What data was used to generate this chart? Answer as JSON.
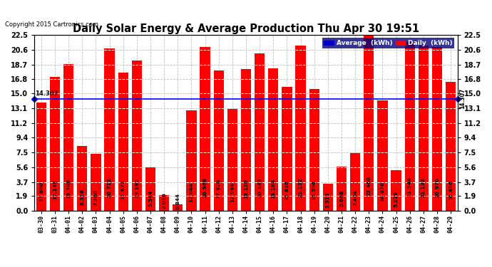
{
  "title": "Daily Solar Energy & Average Production Thu Apr 30 19:51",
  "copyright": "Copyright 2015 Cartronics.com",
  "average_value": 14.307,
  "bar_color": "#FF0000",
  "average_line_color": "#0000FF",
  "background_color": "#FFFFFF",
  "plot_bg_color": "#FFFFFF",
  "grid_color": "#C0C0C0",
  "categories": [
    "03-30",
    "03-31",
    "04-01",
    "04-02",
    "04-03",
    "04-04",
    "04-05",
    "04-06",
    "04-07",
    "04-08",
    "04-09",
    "04-10",
    "04-11",
    "04-12",
    "04-13",
    "04-14",
    "04-15",
    "04-16",
    "04-17",
    "04-18",
    "04-19",
    "04-20",
    "04-21",
    "04-22",
    "04-23",
    "04-24",
    "04-25",
    "04-26",
    "04-27",
    "04-28",
    "04-29"
  ],
  "values": [
    13.86,
    17.148,
    18.788,
    8.336,
    7.28,
    20.712,
    17.672,
    19.192,
    5.544,
    2.016,
    0.844,
    12.844,
    20.968,
    17.92,
    12.996,
    18.13,
    20.142,
    18.184,
    15.816,
    21.132,
    15.596,
    3.512,
    5.668,
    7.404,
    22.46,
    14.076,
    5.228,
    21.544,
    21.132,
    20.97,
    16.496
  ],
  "ylim": [
    0.0,
    22.5
  ],
  "yticks": [
    0.0,
    1.9,
    3.7,
    5.6,
    7.5,
    9.4,
    11.2,
    13.1,
    15.0,
    16.8,
    18.7,
    20.6,
    22.5
  ],
  "legend_avg_color": "#0000CC",
  "legend_daily_color": "#FF0000",
  "label_fontsize": 5.2,
  "title_fontsize": 10.5,
  "bar_width": 0.75
}
